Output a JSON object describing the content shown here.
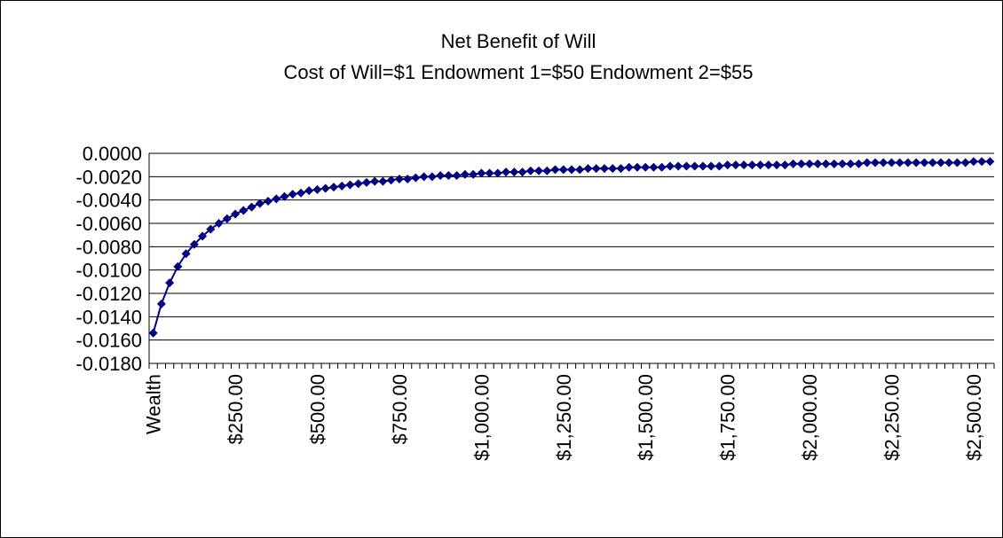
{
  "chart_data": {
    "type": "line",
    "title": "Net Benefit of Will",
    "subtitle": "Cost of Will=$1 Endowment 1=$50 Endowment 2=$55",
    "categories": [
      "Wealth",
      null,
      null,
      null,
      null,
      null,
      null,
      null,
      null,
      null,
      "$250.00",
      null,
      null,
      null,
      null,
      null,
      null,
      null,
      null,
      null,
      "$500.00",
      null,
      null,
      null,
      null,
      null,
      null,
      null,
      null,
      null,
      "$750.00",
      null,
      null,
      null,
      null,
      null,
      null,
      null,
      null,
      null,
      "$1,000.00",
      null,
      null,
      null,
      null,
      null,
      null,
      null,
      null,
      null,
      "$1,250.00",
      null,
      null,
      null,
      null,
      null,
      null,
      null,
      null,
      null,
      "$1,500.00",
      null,
      null,
      null,
      null,
      null,
      null,
      null,
      null,
      null,
      "$1,750.00",
      null,
      null,
      null,
      null,
      null,
      null,
      null,
      null,
      null,
      "$2,000.00",
      null,
      null,
      null,
      null,
      null,
      null,
      null,
      null,
      null,
      "$2,250.00",
      null,
      null,
      null,
      null,
      null,
      null,
      null,
      null,
      null,
      "$2,500.00",
      null,
      null
    ],
    "values": [
      -0.0154,
      -0.0129,
      -0.0111,
      -0.0097,
      -0.0086,
      -0.0078,
      -0.0071,
      -0.0065,
      -0.006,
      -0.0056,
      -0.0052,
      -0.0049,
      -0.0046,
      -0.0043,
      -0.0041,
      -0.0039,
      -0.0037,
      -0.0035,
      -0.0034,
      -0.0032,
      -0.0031,
      -0.003,
      -0.0029,
      -0.0028,
      -0.0027,
      -0.0026,
      -0.0025,
      -0.0024,
      -0.0024,
      -0.0023,
      -0.0022,
      -0.0022,
      -0.0021,
      -0.002,
      -0.002,
      -0.0019,
      -0.0019,
      -0.0019,
      -0.0018,
      -0.0018,
      -0.0017,
      -0.0017,
      -0.0017,
      -0.0016,
      -0.0016,
      -0.0016,
      -0.0015,
      -0.0015,
      -0.0015,
      -0.0014,
      -0.0014,
      -0.0014,
      -0.0014,
      -0.0013,
      -0.0013,
      -0.0013,
      -0.0013,
      -0.0013,
      -0.0012,
      -0.0012,
      -0.0012,
      -0.0012,
      -0.0012,
      -0.0011,
      -0.0011,
      -0.0011,
      -0.0011,
      -0.0011,
      -0.0011,
      -0.0011,
      -0.001,
      -0.001,
      -0.001,
      -0.001,
      -0.001,
      -0.001,
      -0.001,
      -0.001,
      -0.0009,
      -0.0009,
      -0.0009,
      -0.0009,
      -0.0009,
      -0.0009,
      -0.0009,
      -0.0009,
      -0.0009,
      -0.0008,
      -0.0008,
      -0.0008,
      -0.0008,
      -0.0008,
      -0.0008,
      -0.0008,
      -0.0008,
      -0.0008,
      -0.0008,
      -0.0008,
      -0.0008,
      -0.0008,
      -0.0007,
      -0.0007,
      -0.0007
    ],
    "color": "#000080",
    "ylim": [
      -0.018,
      0
    ],
    "yticks": [
      {
        "value": 0,
        "label": "0.0000"
      },
      {
        "value": -0.002,
        "label": "-0.0020"
      },
      {
        "value": -0.004,
        "label": "-0.0040"
      },
      {
        "value": -0.006,
        "label": "-0.0060"
      },
      {
        "value": -0.008,
        "label": "-0.0080"
      },
      {
        "value": -0.01,
        "label": "-0.0100"
      },
      {
        "value": -0.012,
        "label": "-0.0120"
      },
      {
        "value": -0.014,
        "label": "-0.0140"
      },
      {
        "value": -0.016,
        "label": "-0.0160"
      },
      {
        "value": -0.018,
        "label": "-0.0180"
      }
    ],
    "grid": true
  }
}
